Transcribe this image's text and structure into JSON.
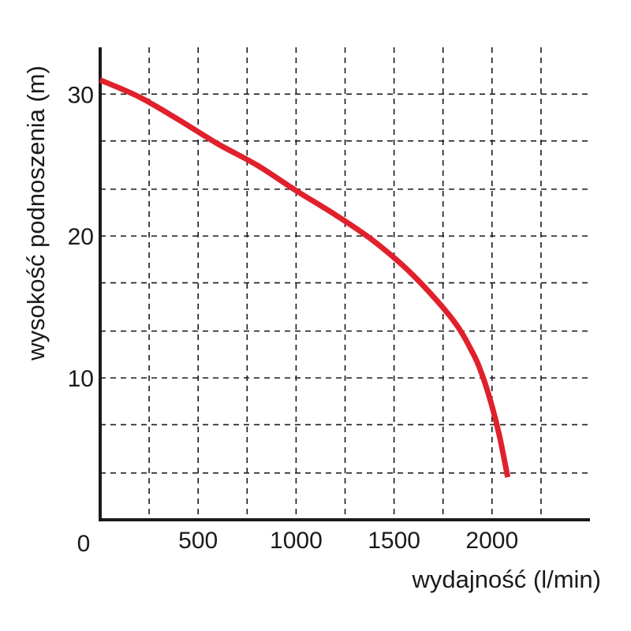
{
  "chart_data": {
    "type": "line",
    "xlabel": "wydajność (l/min)",
    "ylabel": "wysokość podnoszenia (m)",
    "xlim": [
      0,
      2500
    ],
    "ylim": [
      0,
      33.3
    ],
    "x_ticks": [
      500,
      1000,
      1500,
      2000
    ],
    "x_grid": [
      250,
      500,
      750,
      1000,
      1250,
      1500,
      1750,
      2000,
      2250
    ],
    "y_ticks": [
      10,
      20,
      30
    ],
    "y_grid": [
      3.3,
      6.7,
      10,
      13.3,
      16.7,
      20,
      23.3,
      26.7,
      30
    ],
    "origin_label": "0",
    "grid": true,
    "line_color": "#e0212b",
    "axis_color": "#1a1a1a",
    "series": [
      {
        "x": [
          0,
          200,
          400,
          600,
          800,
          1000,
          1200,
          1400,
          1600,
          1800,
          1900,
          1950,
          2000,
          2040,
          2080
        ],
        "y": [
          31,
          29.8,
          28.2,
          26.5,
          25,
          23.2,
          21.5,
          19.6,
          17.2,
          14.1,
          11.8,
          10.2,
          8,
          5.8,
          3
        ]
      }
    ]
  }
}
